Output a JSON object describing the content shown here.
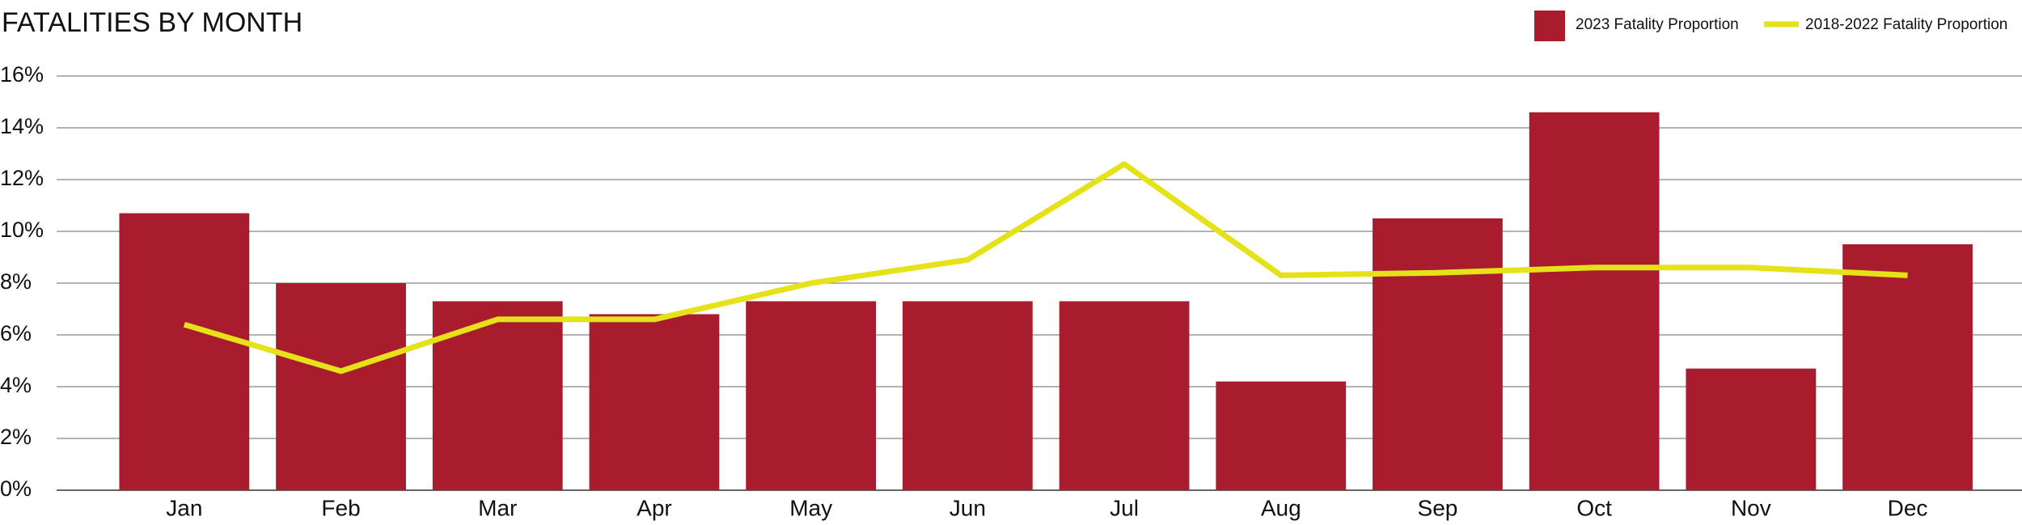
{
  "chart_data": {
    "type": "bar",
    "title": "FATALITIES BY MONTH",
    "categories": [
      "Jan",
      "Feb",
      "Mar",
      "Apr",
      "May",
      "Jun",
      "Jul",
      "Aug",
      "Sep",
      "Oct",
      "Nov",
      "Dec"
    ],
    "series": [
      {
        "name": "2023 Fatality Proportion",
        "type": "bar",
        "color": "#a81c2e",
        "values": [
          10.7,
          8.0,
          7.3,
          6.8,
          7.3,
          7.3,
          7.3,
          4.2,
          10.5,
          14.6,
          4.7,
          9.5
        ]
      },
      {
        "name": "2018-2022 Fatality Proportion",
        "type": "line",
        "color": "#e6e21a",
        "values": [
          6.4,
          4.6,
          6.6,
          6.6,
          8.0,
          8.9,
          12.6,
          8.3,
          8.4,
          8.6,
          8.6,
          8.3
        ]
      }
    ],
    "ylim": [
      0,
      16
    ],
    "yticks": [
      {
        "value": 0,
        "label": "0%"
      },
      {
        "value": 2,
        "label": "2%"
      },
      {
        "value": 4,
        "label": "4%"
      },
      {
        "value": 6,
        "label": "6%"
      },
      {
        "value": 8,
        "label": "8%"
      },
      {
        "value": 10,
        "label": "10%"
      },
      {
        "value": 12,
        "label": "12%"
      },
      {
        "value": 14,
        "label": "14%"
      },
      {
        "value": 16,
        "label": "16%"
      }
    ],
    "grid": true,
    "legend": "top-right"
  }
}
